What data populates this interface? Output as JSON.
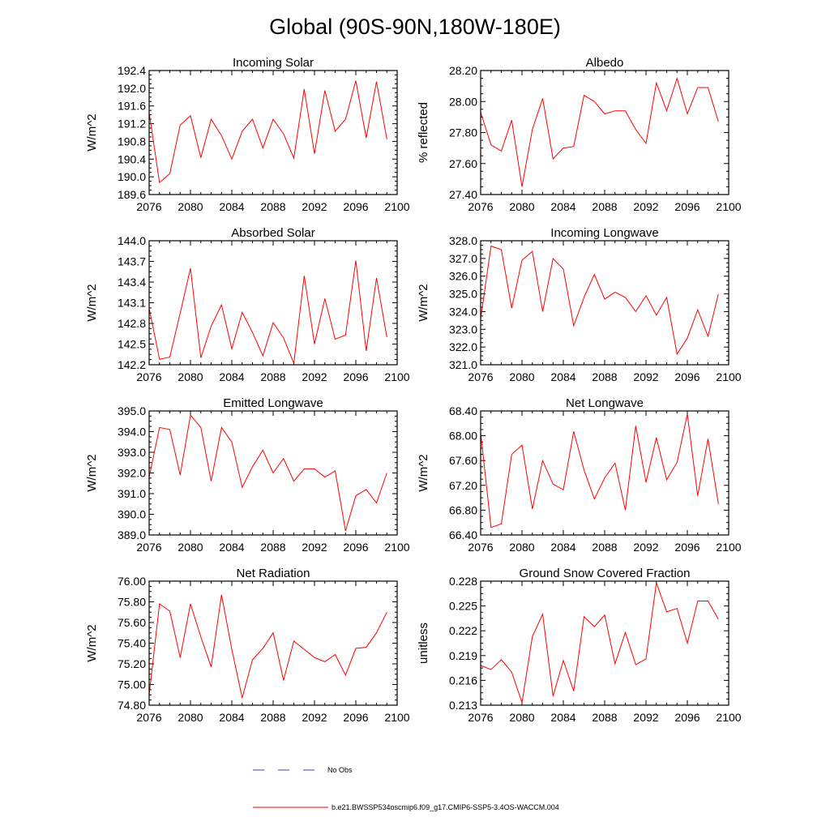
{
  "title": "Global (90S-90N,180W-180E)",
  "colors": {
    "series": "#ff0000",
    "obs": "#3b3bd6",
    "axis": "#000000"
  },
  "legend": {
    "obs_label": "No Obs",
    "series_label": "b.e21.BWSSP534oscmip6.f09_g17.CMIP6-SSP5-3.4OS-WACCM.004"
  },
  "chart_data": [
    {
      "type": "line",
      "title": "Incoming Solar",
      "ylabel": "W/m^2",
      "xlim": [
        2076,
        2100
      ],
      "xticks": [
        2076,
        2080,
        2084,
        2088,
        2092,
        2096,
        2100
      ],
      "ylim": [
        189.6,
        192.4
      ],
      "yticks": [
        "189.6",
        "190.0",
        "190.4",
        "190.8",
        "191.2",
        "191.6",
        "192.0",
        "192.4"
      ],
      "x": [
        2076,
        2077,
        2078,
        2079,
        2080,
        2081,
        2082,
        2083,
        2084,
        2085,
        2086,
        2087,
        2088,
        2089,
        2090,
        2091,
        2092,
        2093,
        2094,
        2095,
        2096,
        2097,
        2098,
        2099
      ],
      "values": [
        191.45,
        189.87,
        190.07,
        191.17,
        191.38,
        190.43,
        191.3,
        190.93,
        190.4,
        191.03,
        191.3,
        190.65,
        191.3,
        190.97,
        190.42,
        191.98,
        190.52,
        191.95,
        191.03,
        191.3,
        192.17,
        190.88,
        192.15,
        190.85
      ]
    },
    {
      "type": "line",
      "title": "Albedo",
      "ylabel": "% reflected",
      "xlim": [
        2076,
        2100
      ],
      "xticks": [
        2076,
        2080,
        2084,
        2088,
        2092,
        2096,
        2100
      ],
      "ylim": [
        27.4,
        28.2
      ],
      "yticks": [
        "27.40",
        "27.60",
        "27.80",
        "28.00",
        "28.20"
      ],
      "x": [
        2076,
        2077,
        2078,
        2079,
        2080,
        2081,
        2082,
        2083,
        2084,
        2085,
        2086,
        2087,
        2088,
        2089,
        2090,
        2091,
        2092,
        2093,
        2094,
        2095,
        2096,
        2097,
        2098,
        2099
      ],
      "values": [
        27.93,
        27.72,
        27.68,
        27.88,
        27.45,
        27.82,
        28.02,
        27.63,
        27.7,
        27.71,
        28.04,
        28.0,
        27.92,
        27.94,
        27.94,
        27.82,
        27.73,
        28.12,
        27.94,
        28.15,
        27.92,
        28.09,
        28.09,
        27.87
      ]
    },
    {
      "type": "line",
      "title": "Absorbed Solar",
      "ylabel": "W/m^2",
      "xlim": [
        2076,
        2100
      ],
      "xticks": [
        2076,
        2080,
        2084,
        2088,
        2092,
        2096,
        2100
      ],
      "ylim": [
        142.2,
        144.0
      ],
      "yticks": [
        "142.2",
        "142.5",
        "142.8",
        "143.1",
        "143.4",
        "143.7",
        "144.0"
      ],
      "x": [
        2076,
        2077,
        2078,
        2079,
        2080,
        2081,
        2082,
        2083,
        2084,
        2085,
        2086,
        2087,
        2088,
        2089,
        2090,
        2091,
        2092,
        2093,
        2094,
        2095,
        2096,
        2097,
        2098,
        2099
      ],
      "values": [
        143.02,
        142.28,
        142.31,
        142.95,
        143.6,
        142.3,
        142.76,
        143.07,
        142.43,
        142.96,
        142.67,
        142.33,
        142.81,
        142.59,
        142.22,
        143.49,
        142.5,
        143.16,
        142.57,
        142.63,
        143.71,
        142.4,
        143.46,
        142.6
      ]
    },
    {
      "type": "line",
      "title": "Incoming Longwave",
      "ylabel": "W/m^2",
      "xlim": [
        2076,
        2100
      ],
      "xticks": [
        2076,
        2080,
        2084,
        2088,
        2092,
        2096,
        2100
      ],
      "ylim": [
        321.0,
        328.0
      ],
      "yticks": [
        "321.0",
        "322.0",
        "323.0",
        "324.0",
        "325.0",
        "326.0",
        "327.0",
        "328.0"
      ],
      "x": [
        2076,
        2077,
        2078,
        2079,
        2080,
        2081,
        2082,
        2083,
        2084,
        2085,
        2086,
        2087,
        2088,
        2089,
        2090,
        2091,
        2092,
        2093,
        2094,
        2095,
        2096,
        2097,
        2098,
        2099
      ],
      "values": [
        323.6,
        327.7,
        327.5,
        324.2,
        326.9,
        327.4,
        324.0,
        327.0,
        326.4,
        323.2,
        324.8,
        326.1,
        324.7,
        325.1,
        324.8,
        324.0,
        324.9,
        323.8,
        324.8,
        321.6,
        322.5,
        324.1,
        322.6,
        325.0
      ]
    },
    {
      "type": "line",
      "title": "Emitted Longwave",
      "ylabel": "W/m^2",
      "xlim": [
        2076,
        2100
      ],
      "xticks": [
        2076,
        2080,
        2084,
        2088,
        2092,
        2096,
        2100
      ],
      "ylim": [
        389.0,
        395.0
      ],
      "yticks": [
        "389.0",
        "390.0",
        "391.0",
        "392.0",
        "393.0",
        "394.0",
        "395.0"
      ],
      "x": [
        2076,
        2077,
        2078,
        2079,
        2080,
        2081,
        2082,
        2083,
        2084,
        2085,
        2086,
        2087,
        2088,
        2089,
        2090,
        2091,
        2092,
        2093,
        2094,
        2095,
        2096,
        2097,
        2098,
        2099
      ],
      "values": [
        391.8,
        394.2,
        394.1,
        391.9,
        394.8,
        394.2,
        391.6,
        394.2,
        393.5,
        391.3,
        392.3,
        393.1,
        392.0,
        392.7,
        391.6,
        392.2,
        392.2,
        391.8,
        392.1,
        389.2,
        390.9,
        391.2,
        390.55,
        392.0
      ]
    },
    {
      "type": "line",
      "title": "Net Longwave",
      "ylabel": "W/m^2",
      "xlim": [
        2076,
        2100
      ],
      "xticks": [
        2076,
        2080,
        2084,
        2088,
        2092,
        2096,
        2100
      ],
      "ylim": [
        66.4,
        68.4
      ],
      "yticks": [
        "66.40",
        "66.80",
        "67.20",
        "67.60",
        "68.00",
        "68.40"
      ],
      "x": [
        2076,
        2077,
        2078,
        2079,
        2080,
        2081,
        2082,
        2083,
        2084,
        2085,
        2086,
        2087,
        2088,
        2089,
        2090,
        2091,
        2092,
        2093,
        2094,
        2095,
        2096,
        2097,
        2098,
        2099
      ],
      "values": [
        68.05,
        66.52,
        66.58,
        67.7,
        67.85,
        66.82,
        67.6,
        67.22,
        67.13,
        68.07,
        67.45,
        66.98,
        67.32,
        67.56,
        66.8,
        68.16,
        67.25,
        67.97,
        67.29,
        67.57,
        68.35,
        67.03,
        67.95,
        66.9
      ]
    },
    {
      "type": "line",
      "title": "Net Radiation",
      "ylabel": "W/m^2",
      "xlim": [
        2076,
        2100
      ],
      "xticks": [
        2076,
        2080,
        2084,
        2088,
        2092,
        2096,
        2100
      ],
      "ylim": [
        74.8,
        76.0
      ],
      "yticks": [
        "74.80",
        "75.00",
        "75.20",
        "75.40",
        "75.60",
        "75.80",
        "76.00"
      ],
      "x": [
        2076,
        2077,
        2078,
        2079,
        2080,
        2081,
        2082,
        2083,
        2084,
        2085,
        2086,
        2087,
        2088,
        2089,
        2090,
        2091,
        2092,
        2093,
        2094,
        2095,
        2096,
        2097,
        2098,
        2099
      ],
      "values": [
        74.9,
        75.78,
        75.71,
        75.26,
        75.78,
        75.46,
        75.17,
        75.87,
        75.34,
        74.87,
        75.24,
        75.35,
        75.5,
        75.04,
        75.42,
        75.34,
        75.26,
        75.22,
        75.29,
        75.09,
        75.35,
        75.36,
        75.5,
        75.7
      ]
    },
    {
      "type": "line",
      "title": "Ground Snow Covered Fraction",
      "ylabel": "unitless",
      "xlim": [
        2076,
        2100
      ],
      "xticks": [
        2076,
        2080,
        2084,
        2088,
        2092,
        2096,
        2100
      ],
      "ylim": [
        0.213,
        0.228
      ],
      "yticks": [
        "0.213",
        "0.216",
        "0.219",
        "0.222",
        "0.225",
        "0.228"
      ],
      "x": [
        2076,
        2077,
        2078,
        2079,
        2080,
        2081,
        2082,
        2083,
        2084,
        2085,
        2086,
        2087,
        2088,
        2089,
        2090,
        2091,
        2092,
        2093,
        2094,
        2095,
        2096,
        2097,
        2098,
        2099
      ],
      "values": [
        0.2178,
        0.2173,
        0.2185,
        0.217,
        0.2133,
        0.2213,
        0.224,
        0.2141,
        0.2184,
        0.2147,
        0.2237,
        0.2225,
        0.2239,
        0.218,
        0.2218,
        0.2179,
        0.2186,
        0.2278,
        0.2243,
        0.2247,
        0.2205,
        0.2256,
        0.2256,
        0.2234
      ]
    }
  ]
}
